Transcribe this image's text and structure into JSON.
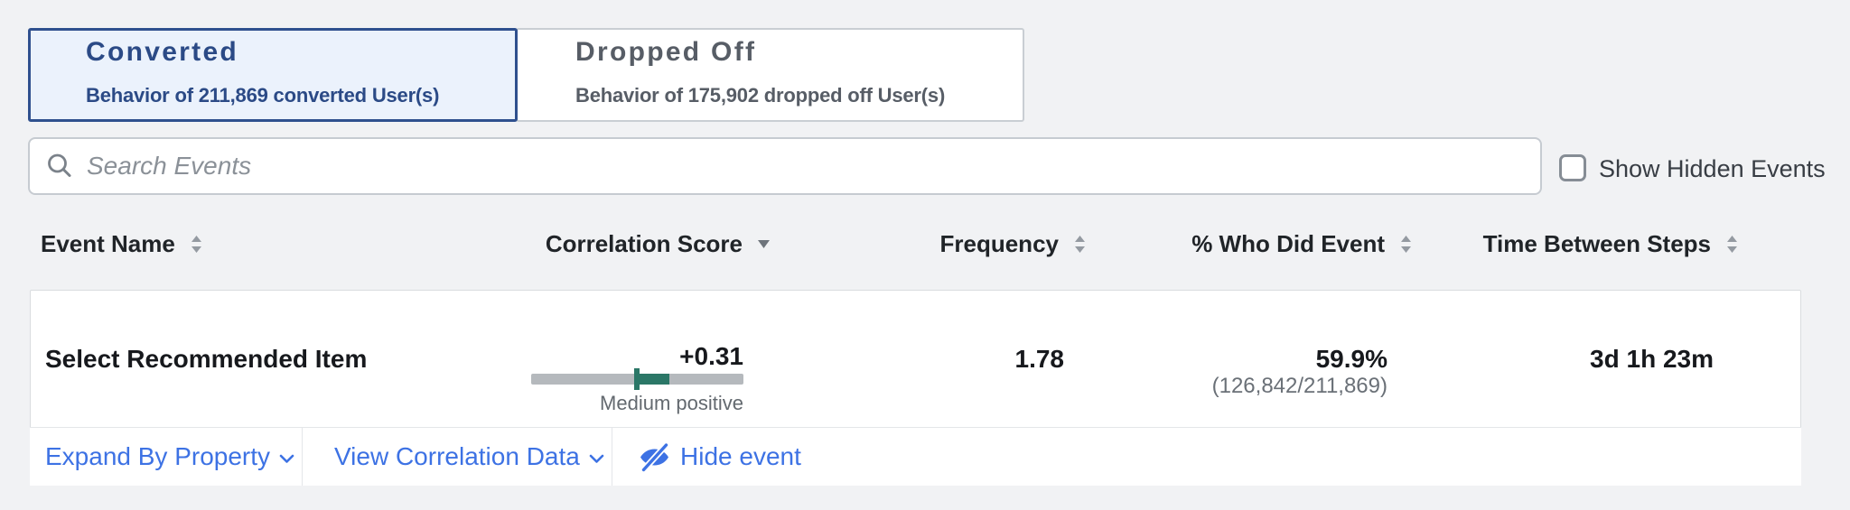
{
  "tabs": [
    {
      "title": "Converted",
      "subtitle": "Behavior of 211,869 converted User(s)",
      "selected": true
    },
    {
      "title": "Dropped Off",
      "subtitle": "Behavior of 175,902 dropped off User(s)",
      "selected": false
    }
  ],
  "search": {
    "placeholder": "Search Events"
  },
  "show_hidden": {
    "label": "Show Hidden Events",
    "checked": false
  },
  "table": {
    "columns": [
      {
        "label": "Event Name",
        "sort": "sortable"
      },
      {
        "label": "Correlation Score",
        "sort": "desc"
      },
      {
        "label": "Frequency",
        "sort": "sortable"
      },
      {
        "label": "% Who Did Event",
        "sort": "sortable"
      },
      {
        "label": "Time Between Steps",
        "sort": "sortable"
      }
    ],
    "row": {
      "event_name": "Select Recommended Item",
      "correlation": {
        "score": "+0.31",
        "value": 0.31,
        "scale_min": -1,
        "scale_max": 1,
        "label": "Medium positive"
      },
      "frequency": "1.78",
      "pct_who_did": "59.9%",
      "pct_fraction": "(126,842/211,869)",
      "time_between_steps": "3d 1h 23m"
    },
    "actions": {
      "expand_by_property": "Expand By Property",
      "view_correlation_data": "View Correlation Data",
      "hide_event": "Hide event"
    }
  },
  "colors": {
    "accent_blue": "#3d72e4",
    "selected_tab_border": "#2f508e",
    "selected_tab_text": "#2b4a86",
    "selected_tab_bg": "#ebf2fc",
    "correlation_teal": "#2b7767",
    "bar_gray": "#b5b9bd"
  }
}
